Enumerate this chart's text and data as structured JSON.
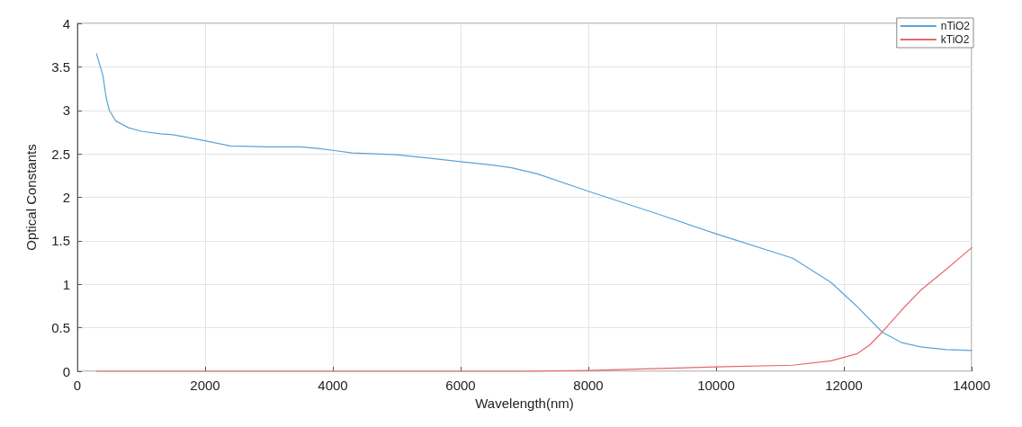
{
  "chart_data": {
    "type": "line",
    "xlabel": "Wavelength(nm)",
    "ylabel": "Optical Constants",
    "xlim": [
      0,
      14000
    ],
    "xticks": [
      0,
      2000,
      4000,
      6000,
      8000,
      10000,
      12000,
      14000
    ],
    "ylim": [
      0,
      4
    ],
    "yticks": [
      0,
      0.5,
      1,
      1.5,
      2,
      2.5,
      3,
      3.5,
      4
    ],
    "grid": true,
    "legend": "top right",
    "marker": "none",
    "line_style": "solid",
    "series": [
      {
        "name": "nTiO2",
        "color": "#5ba3d6",
        "x": [
          300,
          400,
          450,
          500,
          600,
          800,
          1000,
          1300,
          1500,
          2000,
          2400,
          3000,
          3500,
          3800,
          4000,
          4300,
          5000,
          5500,
          6000,
          6500,
          6800,
          7200,
          8000,
          9000,
          10000,
          11200,
          11800,
          12200,
          12600,
          12900,
          13200,
          13600,
          14000
        ],
        "values": [
          3.65,
          3.4,
          3.15,
          3.0,
          2.88,
          2.8,
          2.76,
          2.73,
          2.72,
          2.65,
          2.59,
          2.58,
          2.58,
          2.56,
          2.54,
          2.51,
          2.49,
          2.45,
          2.41,
          2.37,
          2.34,
          2.27,
          2.07,
          1.83,
          1.58,
          1.3,
          1.02,
          0.75,
          0.45,
          0.33,
          0.28,
          0.25,
          0.24
        ]
      },
      {
        "name": "kTiO2",
        "color": "#e8666b",
        "x": [
          300,
          7000,
          8000,
          9000,
          10000,
          11200,
          11800,
          12200,
          12400,
          12600,
          12900,
          13200,
          13600,
          14000
        ],
        "values": [
          0,
          0,
          0.01,
          0.03,
          0.05,
          0.07,
          0.12,
          0.2,
          0.3,
          0.45,
          0.7,
          0.93,
          1.17,
          1.42
        ]
      }
    ]
  }
}
